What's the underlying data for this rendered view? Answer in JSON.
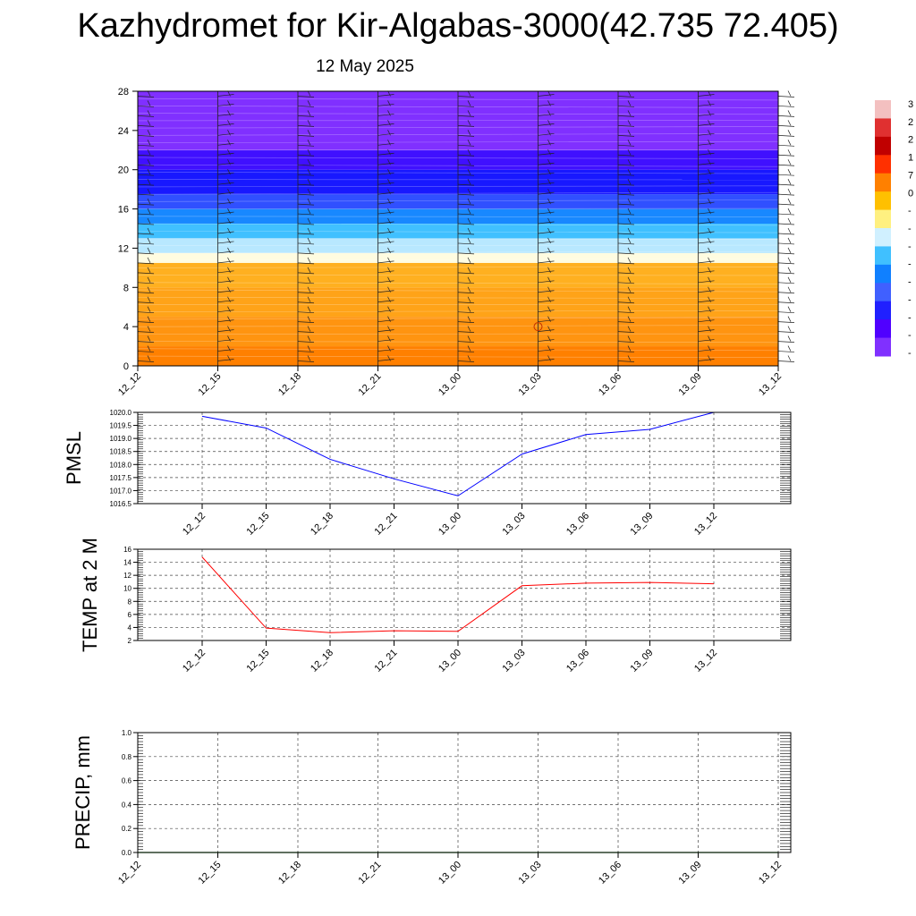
{
  "header": {
    "title": "Kazhydromet for Kir-Algabas-3000(42.735 72.405)",
    "subtitle": "12 May 2025"
  },
  "colorbar": {
    "labels": [
      "3",
      "2",
      "2",
      "1",
      "7",
      "0",
      "-",
      "-",
      "-",
      "-",
      "-",
      "-",
      "-",
      "-",
      "-"
    ],
    "colors": [
      "#f3c0c0",
      "#e03030",
      "#c00000",
      "#ff3000",
      "#ff8000",
      "#ffc000",
      "#fff080",
      "#d0f0ff",
      "#40c0ff",
      "#1080ff",
      "#4060ff",
      "#2020ff",
      "#5000ff",
      "#8030ff"
    ]
  },
  "chart_data": [
    {
      "type": "heatmap",
      "description_hidden": false,
      "x_ticks": [
        "12_12",
        "12_15",
        "12_18",
        "12_21",
        "13_00",
        "13_03",
        "13_06",
        "13_09",
        "13_12"
      ],
      "y_ticks": [
        "0",
        "4",
        "8",
        "12",
        "16",
        "20",
        "24",
        "28"
      ],
      "ylim": [
        0,
        28
      ],
      "bands": [
        {
          "from": 0,
          "to": 2,
          "color": "#ff8000"
        },
        {
          "from": 2,
          "to": 5,
          "color": "#ff9410"
        },
        {
          "from": 5,
          "to": 8,
          "color": "#ffa318"
        },
        {
          "from": 8,
          "to": 10.5,
          "color": "#ffb020"
        },
        {
          "from": 10.5,
          "to": 11.5,
          "color": "#fffce0"
        },
        {
          "from": 11.5,
          "to": 13,
          "color": "#b8e8ff"
        },
        {
          "from": 13,
          "to": 14.5,
          "color": "#40c0ff"
        },
        {
          "from": 14.5,
          "to": 16,
          "color": "#1888ff"
        },
        {
          "from": 16,
          "to": 17.5,
          "color": "#3050ff"
        },
        {
          "from": 17.5,
          "to": 20,
          "color": "#1818ff"
        },
        {
          "from": 20,
          "to": 22,
          "color": "#4010ff"
        },
        {
          "from": 22,
          "to": 28,
          "color": "#8030ff"
        }
      ],
      "marker": {
        "x_index": 5,
        "y": 4
      }
    },
    {
      "type": "line",
      "ylabel": "PMSL",
      "x_ticks": [
        "12_12",
        "12_15",
        "12_18",
        "12_21",
        "13_00",
        "13_03",
        "13_06",
        "13_09",
        "13_12"
      ],
      "y_ticks": [
        "1016.5",
        "1017.0",
        "1017.5",
        "1018.0",
        "1018.5",
        "1019.0",
        "1019.5",
        "1020.0"
      ],
      "ylim": [
        1016.5,
        1020.0
      ],
      "series": [
        {
          "color": "#0000ff",
          "values": [
            1019.85,
            1019.4,
            1018.2,
            1017.45,
            1016.8,
            1018.4,
            1019.15,
            1019.35,
            1020.0
          ]
        }
      ]
    },
    {
      "type": "line",
      "ylabel": "TEMP at 2 M",
      "x_ticks": [
        "12_12",
        "12_15",
        "12_18",
        "12_21",
        "13_00",
        "13_03",
        "13_06",
        "13_09",
        "13_12"
      ],
      "y_ticks": [
        "2",
        "4",
        "6",
        "8",
        "10",
        "12",
        "14",
        "16"
      ],
      "ylim": [
        2,
        16
      ],
      "series": [
        {
          "color": "#ff0000",
          "values": [
            14.8,
            3.9,
            3.2,
            3.5,
            3.4,
            10.4,
            10.8,
            10.9,
            10.7
          ]
        }
      ]
    },
    {
      "type": "line",
      "ylabel": "PRECIP, mm",
      "x_ticks": [
        "12_12",
        "12_15",
        "12_18",
        "12_21",
        "13_00",
        "13_03",
        "13_06",
        "13_09",
        "13_12"
      ],
      "y_ticks": [
        "0.0",
        "0.2",
        "0.4",
        "0.6",
        "0.8",
        "1.0"
      ],
      "ylim": [
        0,
        1
      ],
      "series": [
        {
          "color": "#008000",
          "values": [
            0,
            0,
            0,
            0,
            0,
            0,
            0,
            0,
            0
          ]
        }
      ]
    }
  ]
}
